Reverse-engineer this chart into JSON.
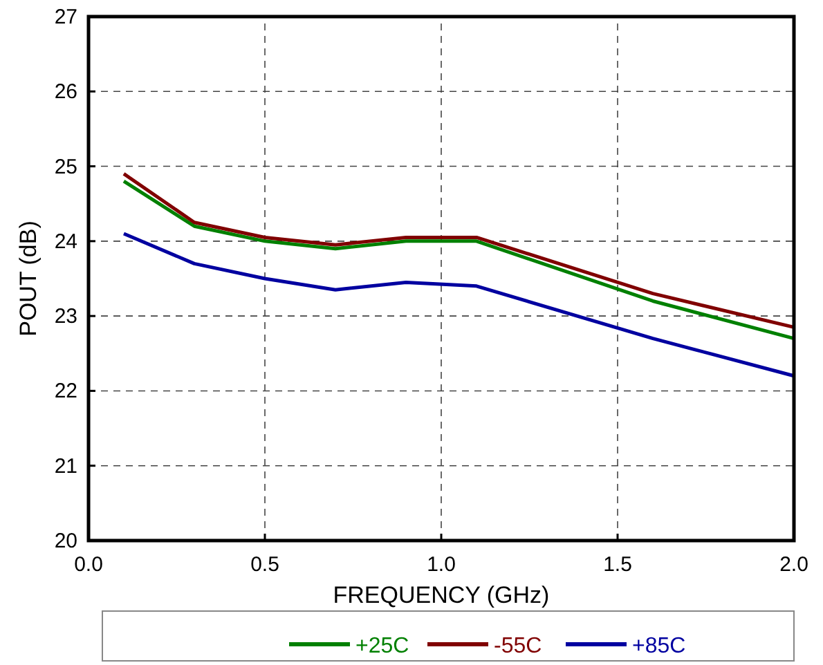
{
  "chart_data": {
    "type": "line",
    "xlabel": "FREQUENCY (GHz)",
    "ylabel": "POUT (dB)",
    "x": [
      0.1,
      0.3,
      0.5,
      0.7,
      0.9,
      1.1,
      1.6,
      2.0
    ],
    "series": [
      {
        "name": "+25C",
        "color": "#008000",
        "values": [
          24.8,
          24.2,
          24.0,
          23.9,
          24.0,
          24.0,
          23.2,
          22.7
        ]
      },
      {
        "name": "-55C",
        "color": "#800000",
        "values": [
          24.9,
          24.25,
          24.05,
          23.95,
          24.05,
          24.05,
          23.3,
          22.85
        ]
      },
      {
        "name": "+85C",
        "color": "#0000a0",
        "values": [
          24.1,
          23.7,
          23.5,
          23.35,
          23.45,
          23.4,
          22.7,
          22.2
        ]
      }
    ],
    "xlim": [
      0,
      2
    ],
    "xticks": [
      {
        "value": 0,
        "label": "0.0"
      },
      0.5,
      {
        "value": 1,
        "label": "1.0"
      },
      1.5,
      {
        "value": 2,
        "label": "2.0"
      }
    ],
    "ylim": [
      20,
      27
    ],
    "yticks": [
      20,
      21,
      22,
      23,
      24,
      25,
      26,
      27
    ],
    "grid": true,
    "legend": "bottom",
    "line_style": "solid",
    "marker": "none"
  }
}
